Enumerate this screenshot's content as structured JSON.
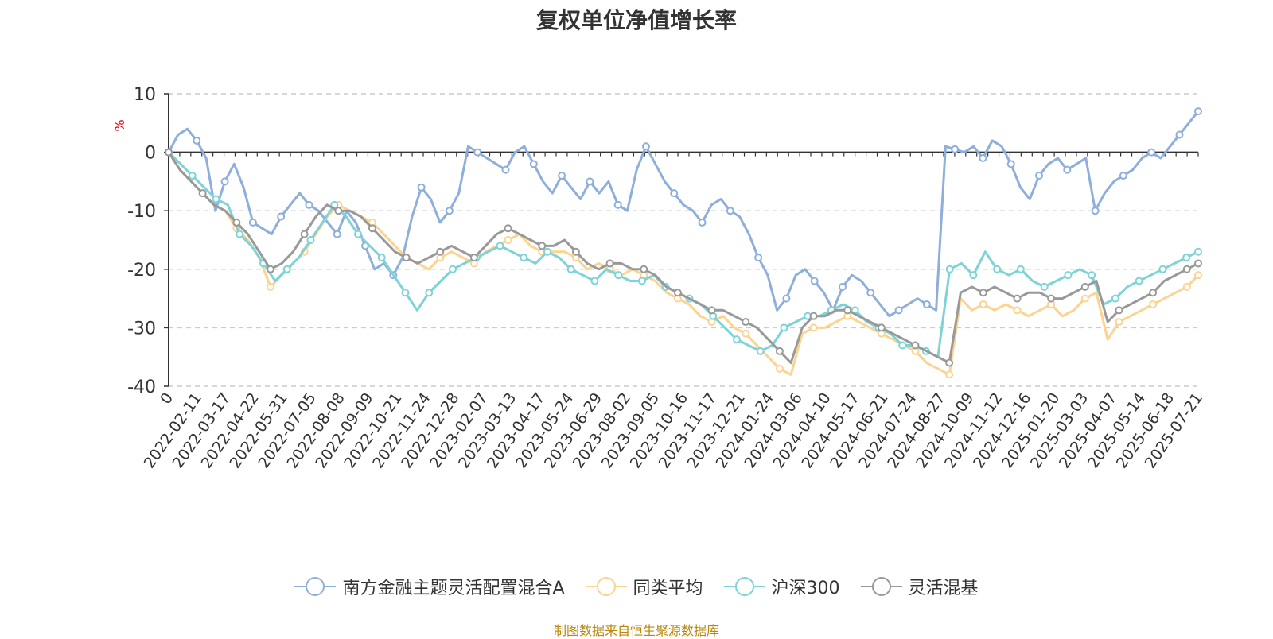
{
  "chart_data": {
    "type": "line",
    "title": "复权单位净值增长率",
    "ylabel": "%",
    "ylim": [
      -40,
      10
    ],
    "yticks": [
      10,
      0,
      -10,
      -20,
      -30,
      -40
    ],
    "x_tick_labels": [
      "0",
      "2022-02-11",
      "2022-03-17",
      "2022-04-22",
      "2022-05-31",
      "2022-07-05",
      "2022-08-08",
      "2022-09-09",
      "2022-10-21",
      "2022-11-24",
      "2022-12-28",
      "2023-02-07",
      "2023-03-13",
      "2023-04-17",
      "2023-05-24",
      "2023-06-29",
      "2023-08-02",
      "2023-09-05",
      "2023-10-16",
      "2023-11-17",
      "2023-12-21",
      "2024-01-24",
      "2024-03-06",
      "2024-04-10",
      "2024-05-17",
      "2024-06-21",
      "2024-07-24",
      "2024-08-27",
      "2024-10-09",
      "2024-11-12",
      "2024-12-16",
      "2025-01-20",
      "2025-03-03",
      "2025-04-07",
      "2025-05-14",
      "2025-06-18",
      "2025-07-21"
    ],
    "grid": true,
    "legend_position": "bottom",
    "series": [
      {
        "name": "南方金融主题灵活配置混合A",
        "color": "#8eaedc",
        "values": [
          0,
          3,
          4,
          2,
          -1,
          -10,
          -5,
          -2,
          -6,
          -12,
          -13,
          -14,
          -11,
          -9,
          -7,
          -9,
          -10,
          -12,
          -14,
          -10,
          -12,
          -16,
          -20,
          -19,
          -21,
          -18,
          -11,
          -6,
          -8,
          -12,
          -10,
          -7,
          1,
          0,
          -1,
          -2,
          -3,
          0,
          1,
          -2,
          -5,
          -7,
          -4,
          -6,
          -8,
          -5,
          -7,
          -5,
          -9,
          -10,
          -3,
          1,
          -2,
          -5,
          -7,
          -9,
          -10,
          -12,
          -9,
          -8,
          -10,
          -11,
          -14,
          -18,
          -21,
          -27,
          -25,
          -21,
          -20,
          -22,
          -24,
          -27,
          -23,
          -21,
          -22,
          -24,
          -26,
          -28,
          -27,
          -26,
          -25,
          -26,
          -27,
          1,
          0.5,
          0,
          1,
          -1,
          2,
          1,
          -2,
          -6,
          -8,
          -4,
          -2,
          -1,
          -3,
          -2,
          -1,
          -10,
          -7,
          -5,
          -4,
          -3,
          -1,
          0,
          -1,
          1,
          3,
          5,
          7
        ]
      },
      {
        "name": "同类平均",
        "color": "#fcd38f",
        "values": [
          0,
          -3,
          -5,
          -7,
          -9,
          -10,
          -13,
          -15,
          -18,
          -23,
          -21,
          -19,
          -17,
          -14,
          -11,
          -9,
          -10,
          -11,
          -12,
          -14,
          -16,
          -18,
          -19,
          -20,
          -18,
          -17,
          -18,
          -19,
          -17,
          -16,
          -15,
          -14,
          -16,
          -17,
          -17,
          -17,
          -18,
          -20,
          -19,
          -20,
          -21,
          -20,
          -21,
          -22,
          -24,
          -25,
          -26,
          -28,
          -29,
          -28,
          -30,
          -31,
          -33,
          -35,
          -37,
          -38,
          -31,
          -30,
          -30,
          -29,
          -28,
          -29,
          -30,
          -31,
          -32,
          -33,
          -34,
          -36,
          -37,
          -38,
          -25,
          -27,
          -26,
          -27,
          -26,
          -27,
          -28,
          -27,
          -26,
          -28,
          -27,
          -25,
          -24,
          -32,
          -29,
          -28,
          -27,
          -26,
          -25,
          -24,
          -23,
          -21
        ]
      },
      {
        "name": "沪深300",
        "color": "#7ed3d6",
        "values": [
          0,
          -2,
          -4,
          -6,
          -8,
          -9,
          -14,
          -16,
          -19,
          -22,
          -20,
          -18,
          -15,
          -12,
          -9,
          -11,
          -14,
          -16,
          -18,
          -21,
          -24,
          -27,
          -24,
          -22,
          -20,
          -19,
          -18,
          -17,
          -16,
          -17,
          -18,
          -19,
          -17,
          -18,
          -20,
          -21,
          -22,
          -20,
          -21,
          -22,
          -22,
          -21,
          -23,
          -24,
          -25,
          -26,
          -28,
          -30,
          -32,
          -33,
          -34,
          -33,
          -30,
          -29,
          -28,
          -28,
          -27,
          -26,
          -27,
          -29,
          -30,
          -31,
          -33,
          -33,
          -34,
          -35,
          -20,
          -19,
          -21,
          -17,
          -20,
          -21,
          -20,
          -22,
          -23,
          -22,
          -21,
          -20,
          -21,
          -26,
          -25,
          -23,
          -22,
          -21,
          -20,
          -19,
          -18,
          -17
        ]
      },
      {
        "name": "灵活混基",
        "color": "#999999",
        "values": [
          0,
          -3,
          -5,
          -7,
          -9,
          -10,
          -12,
          -14,
          -17,
          -20,
          -19,
          -17,
          -14,
          -11,
          -9,
          -10,
          -10,
          -11,
          -13,
          -15,
          -17,
          -18,
          -19,
          -18,
          -17,
          -16,
          -17,
          -18,
          -16,
          -14,
          -13,
          -14,
          -15,
          -16,
          -16,
          -15,
          -17,
          -19,
          -20,
          -19,
          -19,
          -20,
          -20,
          -21,
          -23,
          -24,
          -25,
          -26,
          -27,
          -27,
          -28,
          -29,
          -30,
          -32,
          -34,
          -36,
          -30,
          -28,
          -28,
          -27,
          -27,
          -28,
          -29,
          -30,
          -31,
          -32,
          -33,
          -34,
          -35,
          -36,
          -24,
          -23,
          -24,
          -23,
          -24,
          -25,
          -24,
          -24,
          -25,
          -25,
          -24,
          -23,
          -22,
          -29,
          -27,
          -26,
          -25,
          -24,
          -22,
          -21,
          -20,
          -19
        ]
      }
    ]
  },
  "source_note": "制图数据来自恒生聚源数据库"
}
